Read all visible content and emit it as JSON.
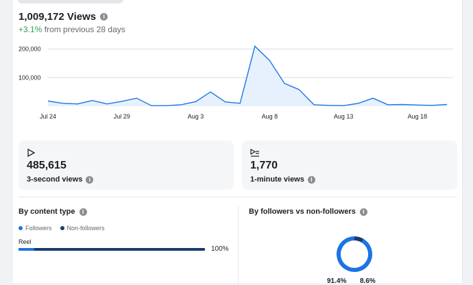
{
  "header": {
    "views_count": "1,009,172 Views",
    "change_value": "+3.1%",
    "change_text": "from previous 28 days"
  },
  "chart_data": {
    "type": "area",
    "x": [
      1,
      2,
      3,
      4,
      5,
      6,
      7,
      8,
      9,
      10,
      11,
      12,
      13,
      14,
      15,
      16,
      17,
      18,
      19,
      20,
      21,
      22,
      23,
      24,
      25,
      26,
      27,
      28
    ],
    "values": [
      18000,
      10000,
      8000,
      20000,
      8000,
      17000,
      28000,
      2000,
      2000,
      5000,
      16000,
      50000,
      15000,
      10000,
      210000,
      160000,
      80000,
      58000,
      5000,
      3000,
      2000,
      10000,
      28000,
      5000,
      6000,
      4000,
      3000,
      6000
    ],
    "x_tick_labels": [
      "Jul 24",
      "Jul 29",
      "Aug 3",
      "Aug 8",
      "Aug 13",
      "Aug 18"
    ],
    "y_tick_labels": [
      "100,000",
      "200,000"
    ],
    "y_ticks": [
      100000,
      200000
    ],
    "ylim": [
      0,
      240000
    ],
    "grid": true,
    "line_color": "#1b74e4",
    "fill_color": "#e7f0fd"
  },
  "stats": [
    {
      "icon": "play-icon",
      "value": "485,615",
      "label": "3-second views"
    },
    {
      "icon": "play-list-icon",
      "value": "1,770",
      "label": "1-minute views"
    }
  ],
  "content_type": {
    "title": "By content type",
    "legend": [
      {
        "label": "Followers",
        "color": "#1b74e4"
      },
      {
        "label": "Non-followers",
        "color": "#1a3b6e"
      }
    ],
    "rows": [
      {
        "label": "Reel",
        "followers_fraction": 0.086,
        "percent_text": "100%"
      }
    ]
  },
  "followers_split": {
    "title": "By followers vs non-followers",
    "non_followers_pct": "91.4%",
    "followers_pct": "8.6%",
    "non_followers_fraction": 0.914,
    "followers_fraction": 0.086
  },
  "colors": {
    "accent": "#1b74e4",
    "dark_series": "#1a3b6e",
    "positive": "#31a24c"
  }
}
